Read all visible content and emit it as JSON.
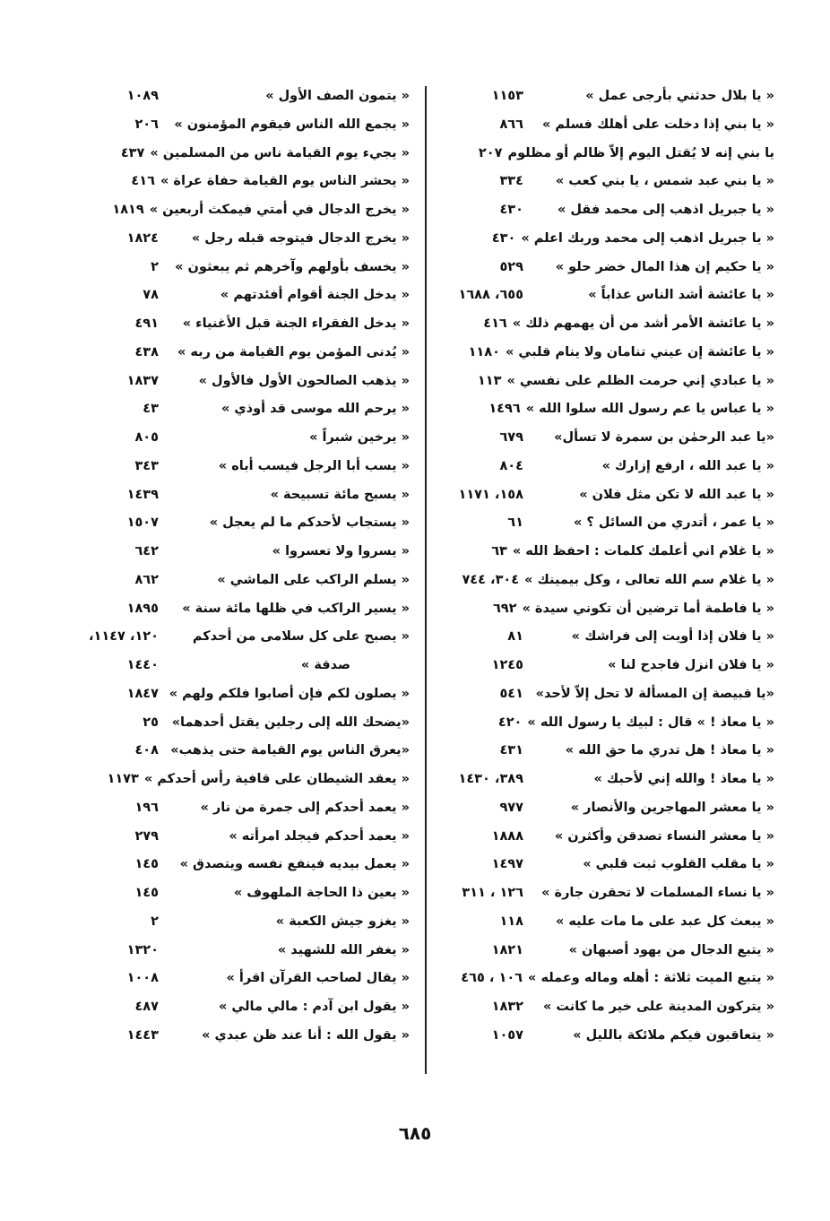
{
  "right_column": {
    "entries": [
      {
        "text": "« يا بلال حدثني بأرجى عمل »",
        "pages": "١١٥٣"
      },
      {
        "text": "« يا بني إذا دخلت على أهلك فسلم »",
        "pages": "٨٦٦"
      },
      {
        "text": "يا بني إنه لا يُقتل اليوم إلاّ ظالم أو مظلوم",
        "pages": "٢٠٧"
      },
      {
        "text": "« يا بني عبد شمس ، يا بني كعب »",
        "pages": "٣٣٤"
      },
      {
        "text": "« يا جبريل اذهب إلى محمد فقل »",
        "pages": "٤٣٠"
      },
      {
        "text": "« يا جبريل اذهب إلى محمد وربك اعلم »",
        "pages": "٤٣٠"
      },
      {
        "text": "« يا حكيم إن هذا المال خضر حلو »",
        "pages": "٥٢٩"
      },
      {
        "text": "« يا عائشة أشد الناس عذاباً »",
        "pages": "٦٥٥، ١٦٨٨"
      },
      {
        "text": "« يا عائشة الأمر أشد من أن يهمهم ذلك »",
        "pages": "٤١٦"
      },
      {
        "text": "« يا عائشة إن عيني تنامان ولا ينام قلبي »",
        "pages": "١١٨٠"
      },
      {
        "text": "« يا عبادي إني حرمت الظلم على نفسي »",
        "pages": "١١٣"
      },
      {
        "text": "« يا عباس يا عم رسول الله سلوا الله »",
        "pages": "١٤٩٦"
      },
      {
        "text": "«يا عبد الرحمٰن بن سمرة لا تسأل»",
        "pages": "٦٧٩"
      },
      {
        "text": "« يا عبد الله ، ارفع إزارك »",
        "pages": "٨٠٤"
      },
      {
        "text": "« يا عبد الله لا تكن مثل فلان »",
        "pages": "١٥٨، ١١٧١"
      },
      {
        "text": "« يا عمر ، أتدري من السائل ؟ »",
        "pages": "٦١"
      },
      {
        "text": "« يا غلام اني أعلمك كلمات : احفظ الله »",
        "pages": "٦٣"
      },
      {
        "text": "« يا غلام سم الله تعالى ، وكل بيمينك »",
        "pages": "٣٠٤، ٧٤٤"
      },
      {
        "text": "« يا فاطمة أما ترضين أن تكوني سيدة »",
        "pages": "٦٩٢"
      },
      {
        "text": "« يا فلان إذا أويت إلى فراشك »",
        "pages": "٨١"
      },
      {
        "text": "« يا فلان انزل فاجدح لنا »",
        "pages": "١٢٤٥"
      },
      {
        "text": "«يا قبيصة إن المسألة لا تحل إلاّ لأحد»",
        "pages": "٥٤١"
      },
      {
        "text": "« يا معاذ ! » قال : لبيك يا رسول الله »",
        "pages": "٤٢٠"
      },
      {
        "text": "« يا معاذ ! هل تدري ما حق الله »",
        "pages": "٤٣١"
      },
      {
        "text": "« يا معاذ ! والله إني لأحبك »",
        "pages": "٣٨٩، ١٤٣٠"
      },
      {
        "text": "« يا معشر المهاجرين والأنصار »",
        "pages": "٩٧٧"
      },
      {
        "text": "« يا معشر النساء تصدقن وأكثرن »",
        "pages": "١٨٨٨"
      },
      {
        "text": "« يا مقلب القلوب ثبت قلبي »",
        "pages": "١٤٩٧"
      },
      {
        "text": "« يا نساء المسلمات لا تحقرن جارة »",
        "pages": "١٢٦ ، ٣١١"
      },
      {
        "text": "« يبعث كل عبد على ما مات عليه »",
        "pages": "١١٨"
      },
      {
        "text": "« يتبع الدجال من يهود أصبهان »",
        "pages": "١٨٢١"
      },
      {
        "text": "« يتبع الميت ثلاثة : أهله وماله وعمله »",
        "pages": "١٠٦ ، ٤٦٥"
      },
      {
        "text": "« يتركون المدينة على خير ما كانت »",
        "pages": "١٨٣٢"
      },
      {
        "text": "« يتعاقبون فيكم ملائكة بالليل »",
        "pages": "١٠٥٧"
      }
    ]
  },
  "left_column": {
    "entries": [
      {
        "text": "« يتمون الصف الأول »",
        "pages": "١٠٨٩"
      },
      {
        "text": "« يجمع الله الناس فيقوم المؤمنون »",
        "pages": "٢٠٦"
      },
      {
        "text": "« يجيء يوم القيامة ناس من المسلمين »",
        "pages": "٤٣٧"
      },
      {
        "text": "« يحشر الناس يوم القيامة حفاة عراة »",
        "pages": "٤١٦"
      },
      {
        "text": "« يخرج الدجال في أمتي فيمكث أربعين »",
        "pages": "١٨١٩"
      },
      {
        "text": "« يخرج الدجال فيتوجه قبله رجل »",
        "pages": "١٨٢٤"
      },
      {
        "text": "« يخسف بأولهم وآخرهم ثم يبعثون »",
        "pages": "٢"
      },
      {
        "text": "« يدخل الجنة أقوام أفئدتهم »",
        "pages": "٧٨"
      },
      {
        "text": "« يدخل الفقراء الجنة قبل الأغنياء »",
        "pages": "٤٩١"
      },
      {
        "text": "« يُدنى المؤمن يوم القيامة من ربه »",
        "pages": "٤٣٨"
      },
      {
        "text": "« يذهب الصالحون الأول فالأول »",
        "pages": "١٨٣٧"
      },
      {
        "text": "« يرحم الله موسى قد أوذي »",
        "pages": "٤٣"
      },
      {
        "text": "« يرخين شبراً »",
        "pages": "٨٠٥"
      },
      {
        "text": "« يسب أبا الرجل فيسب أباه »",
        "pages": "٣٤٣"
      },
      {
        "text": "« يسبح مائة تسبيحة »",
        "pages": "١٤٣٩"
      },
      {
        "text": "« يستجاب لأحدكم ما لم يعجل »",
        "pages": "١٥٠٧"
      },
      {
        "text": "« يسروا ولا تعسروا »",
        "pages": "٦٤٢"
      },
      {
        "text": "« يسلم الراكب على الماشي »",
        "pages": "٨٦٢"
      },
      {
        "text": "« يسير الراكب في ظلها مائة سنة »",
        "pages": "١٨٩٥"
      },
      {
        "text": "« يصبح على كل سلامى من أحدكم",
        "pages": "١٢٠، ١١٤٧،"
      },
      {
        "text": "صدقة »",
        "pages": "١٤٤٠",
        "continuation": true
      },
      {
        "text": "« يصلون لكم فإن أصابوا فلكم ولهم »",
        "pages": "١٨٤٧"
      },
      {
        "text": "«يضحك الله إلى رجلين يقتل أحدهما»",
        "pages": "٢٥"
      },
      {
        "text": "«يعرق الناس يوم القيامة حتى يذهب»",
        "pages": "٤٠٨"
      },
      {
        "text": "« يعقد الشيطان على قافية رأس أحدكم »",
        "pages": "١١٧٣"
      },
      {
        "text": "« يعمد أحدكم إلى جمرة من نار »",
        "pages": "١٩٦"
      },
      {
        "text": "« يعمد أحدكم فيجلد امرأته »",
        "pages": "٢٧٩"
      },
      {
        "text": "« يعمل بيديه فينفع نفسه ويتصدق »",
        "pages": "١٤٥"
      },
      {
        "text": "« يعين ذا الحاجة الملهوف »",
        "pages": "١٤٥"
      },
      {
        "text": "« يغزو جيش الكعبة »",
        "pages": "٢"
      },
      {
        "text": "« يغفر الله للشهيد »",
        "pages": "١٣٢٠"
      },
      {
        "text": "« يقال لصاحب القرآن اقرأ »",
        "pages": "١٠٠٨"
      },
      {
        "text": "« يقول ابن آدم : مالي مالي »",
        "pages": "٤٨٧"
      },
      {
        "text": "« يقول الله : أنا عند ظن عبدي »",
        "pages": "١٤٤٣"
      }
    ]
  },
  "footer": {
    "page_number": "٦٨٥"
  }
}
